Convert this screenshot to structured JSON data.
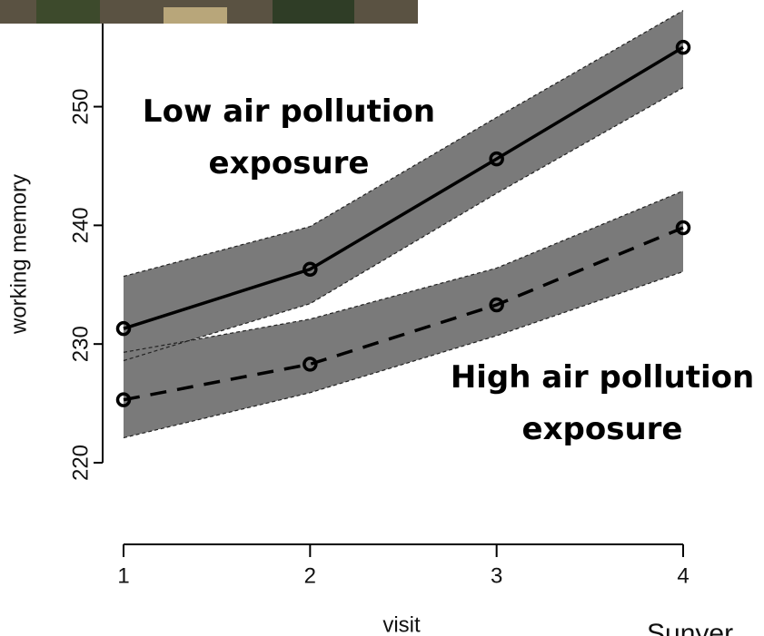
{
  "chart_data": {
    "type": "line",
    "x_label": "visit",
    "y_label": "working memory",
    "x": [
      1,
      2,
      3,
      4
    ],
    "xlim": [
      1,
      4
    ],
    "xticks": [
      1,
      2,
      3,
      4
    ],
    "ylim": [
      220,
      257
    ],
    "yticks": [
      220,
      230,
      240,
      250
    ],
    "series": [
      {
        "name": "Low air pollution exposure",
        "color": "#000000",
        "dash": false,
        "values": [
          231.3,
          236.3,
          245.6,
          255.0
        ],
        "lower": [
          228.6,
          233.4,
          242.7,
          251.6
        ],
        "upper": [
          235.7,
          239.9,
          249.1,
          258.1
        ]
      },
      {
        "name": "High air pollution exposure",
        "color": "#000000",
        "dash": true,
        "values": [
          225.3,
          228.3,
          233.3,
          239.8
        ],
        "lower": [
          222.1,
          225.9,
          230.7,
          236.1
        ],
        "upper": [
          229.3,
          232.1,
          236.4,
          242.9
        ]
      }
    ],
    "band_color": "#7a7a7a"
  },
  "credit": "Sunyer"
}
